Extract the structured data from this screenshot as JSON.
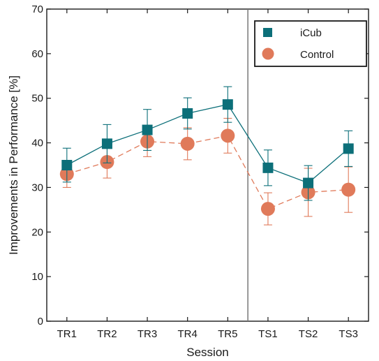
{
  "chart_data": {
    "type": "line",
    "xlabel": "Session",
    "ylabel": "Improvements in Performance [%]",
    "ylim": [
      0,
      70
    ],
    "yticks": [
      0,
      10,
      20,
      30,
      40,
      50,
      60,
      70
    ],
    "categories": [
      "TR1",
      "TR2",
      "TR3",
      "TR4",
      "TR5",
      "TS1",
      "TS2",
      "TS3"
    ],
    "divider_after_category": "TR5",
    "grid": false,
    "legend_position": "top-right",
    "series": [
      {
        "name": "iCub",
        "marker": "square",
        "line_style": "solid",
        "color": "#0c6f79",
        "values": [
          35.0,
          39.8,
          42.9,
          46.6,
          48.6,
          34.4,
          31.0,
          38.7
        ],
        "error": [
          3.8,
          4.3,
          4.6,
          3.5,
          4.0,
          4.0,
          3.9,
          4.0
        ]
      },
      {
        "name": "Control",
        "marker": "circle",
        "line_style": "dashed",
        "color": "#e07a5a",
        "values": [
          33.0,
          35.7,
          40.3,
          39.8,
          41.6,
          25.2,
          28.9,
          29.5
        ],
        "error": [
          3.0,
          3.6,
          3.4,
          3.6,
          3.9,
          3.6,
          5.4,
          5.1
        ]
      }
    ]
  }
}
